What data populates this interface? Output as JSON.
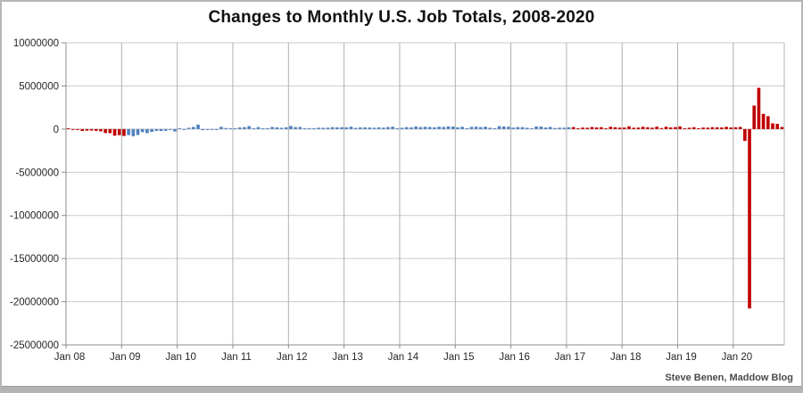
{
  "window": {
    "background": "#ffffff",
    "border_color": "#b6b6b6",
    "footer_strip_color": "#b3b3b3"
  },
  "chart_data": {
    "type": "bar",
    "title": "Changes to Monthly U.S. Job Totals, 2008-2020",
    "attribution": "Steve Benen, Maddow Blog",
    "xlabel": "",
    "ylabel": "",
    "x_start": "2008-01",
    "x_end": "2020-11",
    "x_tick_labels": [
      "Jan 08",
      "Jan 09",
      "Jan 10",
      "Jan 11",
      "Jan 12",
      "Jan 13",
      "Jan 14",
      "Jan 15",
      "Jan 16",
      "Jan 17",
      "Jan 18",
      "Jan 19",
      "Jan 20"
    ],
    "y_ticks": [
      10000000,
      5000000,
      0,
      -5000000,
      -10000000,
      -15000000,
      -20000000,
      -25000000
    ],
    "ylim": [
      -25000000,
      10000000
    ],
    "grid": true,
    "legend": "none",
    "unit": "net monthly change in nonfarm jobs",
    "values_thousands_by_year": {
      "2008": [
        15,
        -86,
        -80,
        -214,
        -182,
        -172,
        -210,
        -259,
        -452,
        -474,
        -765,
        -697
      ],
      "2009": [
        -798,
        -701,
        -826,
        -684,
        -354,
        -467,
        -327,
        -216,
        -227,
        -198,
        -6,
        -283
      ],
      "2010": [
        18,
        -50,
        156,
        251,
        516,
        -122,
        -61,
        -42,
        -52,
        257,
        123,
        88
      ],
      "2011": [
        42,
        188,
        225,
        346,
        73,
        235,
        70,
        107,
        246,
        202,
        146,
        207
      ],
      "2012": [
        360,
        226,
        243,
        96,
        110,
        88,
        160,
        150,
        161,
        225,
        203,
        214
      ],
      "2013": [
        197,
        280,
        141,
        203,
        199,
        177,
        149,
        202,
        164,
        237,
        274,
        84
      ],
      "2014": [
        144,
        222,
        203,
        304,
        229,
        267,
        243,
        203,
        271,
        243,
        321,
        292
      ],
      "2015": [
        201,
        266,
        84,
        251,
        273,
        228,
        277,
        150,
        100,
        344,
        298,
        271
      ],
      "2016": [
        168,
        233,
        225,
        153,
        43,
        297,
        291,
        176,
        249,
        124,
        164,
        155
      ],
      "2017": [
        216,
        232,
        50,
        175,
        155,
        239,
        189,
        221,
        14,
        271,
        216,
        175
      ],
      "2018": [
        176,
        324,
        155,
        175,
        268,
        208,
        165,
        286,
        119,
        277,
        196,
        227
      ],
      "2019": [
        312,
        56,
        153,
        216,
        62,
        178,
        166,
        219,
        208,
        185,
        261,
        184
      ],
      "2020": [
        214,
        251,
        -1373,
        -20787,
        2725,
        4781,
        1761,
        1493,
        661,
        610,
        245
      ]
    },
    "color_segments": [
      {
        "from_index": 0,
        "to_index": 12,
        "color": "#C00000"
      },
      {
        "from_index": 13,
        "to_index": 108,
        "color": "#4F81BD"
      },
      {
        "from_index": 109,
        "to_index": 154,
        "color": "#C00000"
      }
    ],
    "colors": {
      "bar_red": "#C00000",
      "bar_blue": "#4F81BD",
      "gridline": "#c9c9c9",
      "year_gridline": "#b0b0b0",
      "axis_line": "#8c8c8c",
      "tick_label": "#262626"
    }
  }
}
